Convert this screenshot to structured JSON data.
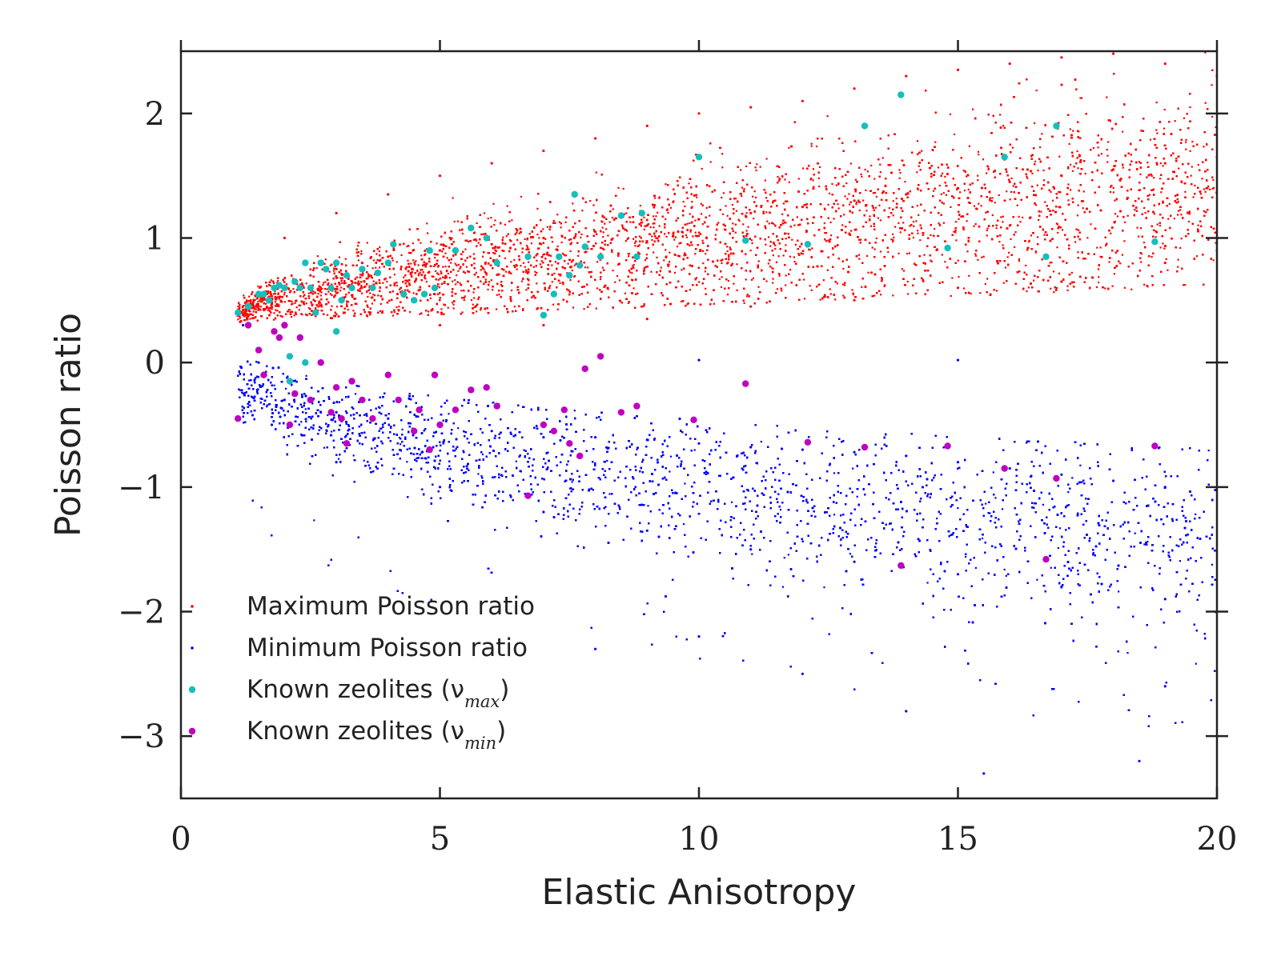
{
  "chart_data": {
    "type": "scatter",
    "title": "",
    "xlabel": "Elastic Anisotropy",
    "ylabel": "Poisson ratio",
    "xlim": [
      0,
      20
    ],
    "ylim": [
      -3.5,
      2.5
    ],
    "x_ticks": [
      {
        "value": 0,
        "label": "0"
      },
      {
        "value": 5,
        "label": "5"
      },
      {
        "value": 10,
        "label": "10"
      },
      {
        "value": 15,
        "label": "15"
      },
      {
        "value": 20,
        "label": "20"
      }
    ],
    "y_ticks": [
      {
        "value": 2,
        "label": "2"
      },
      {
        "value": 1,
        "label": "1"
      },
      {
        "value": 0,
        "label": "0"
      },
      {
        "value": -1,
        "label": "−1"
      },
      {
        "value": -2,
        "label": "−2"
      },
      {
        "value": -3,
        "label": "−3"
      }
    ],
    "grid": false,
    "legend_position": "lower-left",
    "series": [
      {
        "name": "Maximum Poisson ratio",
        "color": "#ff0000",
        "marker": "small-dot",
        "points": [
          [
            1.2,
            0.42
          ],
          [
            1.5,
            0.55
          ],
          [
            2.0,
            0.6
          ],
          [
            2.5,
            0.7
          ],
          [
            3.0,
            0.75
          ],
          [
            3.5,
            0.8
          ],
          [
            4.0,
            0.85
          ],
          [
            5.0,
            0.9
          ],
          [
            6.0,
            0.95
          ],
          [
            7.0,
            1.0
          ],
          [
            8.0,
            1.05
          ],
          [
            9.0,
            1.1
          ],
          [
            10.0,
            1.15
          ],
          [
            11.0,
            1.2
          ],
          [
            12.0,
            1.25
          ],
          [
            13.0,
            1.3
          ],
          [
            14.0,
            1.35
          ],
          [
            15.0,
            1.4
          ],
          [
            16.0,
            1.45
          ],
          [
            17.0,
            1.5
          ],
          [
            18.0,
            1.55
          ],
          [
            19.0,
            1.6
          ],
          [
            20.0,
            1.65
          ],
          [
            2.0,
            1.0
          ],
          [
            3.0,
            1.2
          ],
          [
            4.0,
            1.35
          ],
          [
            5.0,
            1.5
          ],
          [
            6.0,
            1.6
          ],
          [
            7.0,
            1.7
          ],
          [
            8.0,
            1.8
          ],
          [
            9.0,
            1.9
          ],
          [
            10.0,
            2.0
          ],
          [
            11.0,
            2.05
          ],
          [
            12.0,
            2.1
          ],
          [
            13.0,
            2.2
          ],
          [
            14.0,
            2.3
          ],
          [
            15.0,
            2.35
          ],
          [
            16.0,
            2.4
          ],
          [
            17.0,
            2.45
          ],
          [
            18.0,
            2.48
          ],
          [
            19.0,
            2.4
          ],
          [
            20.0,
            2.3
          ],
          [
            5.0,
            0.3
          ],
          [
            7.0,
            0.3
          ],
          [
            9.0,
            0.35
          ],
          [
            11.0,
            0.45
          ],
          [
            13.0,
            0.5
          ],
          [
            15.0,
            0.6
          ],
          [
            17.0,
            0.65
          ],
          [
            19.0,
            0.8
          ],
          [
            20.0,
            0.9
          ]
        ]
      },
      {
        "name": "Minimum Poisson ratio",
        "color": "#0000ff",
        "marker": "small-dot",
        "points": [
          [
            1.2,
            0.3
          ],
          [
            1.5,
            0.0
          ],
          [
            2.0,
            -0.3
          ],
          [
            3.0,
            -0.4
          ],
          [
            4.0,
            -0.45
          ],
          [
            5.0,
            -0.5
          ],
          [
            6.0,
            -0.55
          ],
          [
            7.0,
            -0.6
          ],
          [
            8.0,
            -0.6
          ],
          [
            9.0,
            -0.62
          ],
          [
            10.0,
            -0.65
          ],
          [
            11.0,
            -0.68
          ],
          [
            12.0,
            -0.7
          ],
          [
            13.0,
            -0.72
          ],
          [
            14.0,
            -0.75
          ],
          [
            15.0,
            -0.8
          ],
          [
            16.0,
            -0.85
          ],
          [
            17.0,
            -0.9
          ],
          [
            18.0,
            -0.95
          ],
          [
            19.0,
            -1.0
          ],
          [
            20.0,
            -1.0
          ],
          [
            3.0,
            -0.8
          ],
          [
            5.0,
            -1.0
          ],
          [
            7.0,
            -1.2
          ],
          [
            9.0,
            -1.35
          ],
          [
            11.0,
            -1.5
          ],
          [
            13.0,
            -1.6
          ],
          [
            15.0,
            -1.7
          ],
          [
            17.0,
            -1.8
          ],
          [
            19.0,
            -1.9
          ],
          [
            20.0,
            -2.0
          ],
          [
            10.0,
            -2.2
          ],
          [
            12.0,
            -2.5
          ],
          [
            14.0,
            -2.8
          ],
          [
            15.5,
            -3.3
          ],
          [
            18.5,
            -3.2
          ],
          [
            19.0,
            -2.6
          ],
          [
            8.0,
            -2.3
          ],
          [
            20.0,
            0.0
          ],
          [
            15.0,
            0.02
          ],
          [
            10.0,
            0.02
          ]
        ]
      },
      {
        "name": "Known zeolites (ν_max)",
        "color": "#17bebb",
        "marker": "dot",
        "points": [
          [
            1.1,
            0.4
          ],
          [
            1.3,
            0.45
          ],
          [
            1.5,
            0.55
          ],
          [
            1.6,
            0.55
          ],
          [
            1.7,
            0.5
          ],
          [
            1.8,
            0.6
          ],
          [
            1.9,
            0.62
          ],
          [
            2.0,
            0.6
          ],
          [
            2.2,
            0.65
          ],
          [
            2.3,
            0.6
          ],
          [
            2.4,
            0.8
          ],
          [
            2.5,
            0.6
          ],
          [
            2.6,
            0.4
          ],
          [
            2.7,
            0.8
          ],
          [
            2.8,
            0.75
          ],
          [
            2.9,
            0.6
          ],
          [
            3.0,
            0.8
          ],
          [
            3.1,
            0.5
          ],
          [
            3.2,
            0.7
          ],
          [
            3.3,
            0.6
          ],
          [
            3.5,
            0.75
          ],
          [
            3.7,
            0.6
          ],
          [
            3.8,
            0.72
          ],
          [
            4.0,
            0.8
          ],
          [
            4.1,
            0.95
          ],
          [
            4.3,
            0.55
          ],
          [
            4.5,
            0.5
          ],
          [
            4.7,
            0.55
          ],
          [
            4.8,
            0.9
          ],
          [
            4.9,
            0.6
          ],
          [
            5.3,
            0.9
          ],
          [
            5.6,
            1.08
          ],
          [
            5.9,
            1.0
          ],
          [
            6.1,
            0.8
          ],
          [
            6.7,
            0.85
          ],
          [
            7.0,
            0.38
          ],
          [
            7.2,
            0.55
          ],
          [
            7.3,
            0.85
          ],
          [
            7.5,
            0.7
          ],
          [
            7.6,
            1.35
          ],
          [
            7.7,
            0.78
          ],
          [
            7.8,
            0.93
          ],
          [
            8.1,
            0.85
          ],
          [
            8.5,
            1.18
          ],
          [
            8.8,
            0.85
          ],
          [
            8.9,
            1.2
          ],
          [
            10.0,
            1.65
          ],
          [
            10.9,
            0.98
          ],
          [
            12.1,
            0.95
          ],
          [
            13.2,
            1.9
          ],
          [
            13.9,
            2.15
          ],
          [
            14.8,
            0.92
          ],
          [
            15.9,
            1.65
          ],
          [
            16.7,
            0.85
          ],
          [
            16.9,
            1.9
          ],
          [
            18.8,
            0.97
          ],
          [
            2.1,
            0.05
          ],
          [
            2.1,
            -0.15
          ],
          [
            3.0,
            0.25
          ],
          [
            2.4,
            0.0
          ]
        ]
      },
      {
        "name": "Known zeolites (ν_min)",
        "color": "#c000c0",
        "marker": "dot",
        "points": [
          [
            1.1,
            -0.45
          ],
          [
            1.3,
            0.3
          ],
          [
            1.5,
            0.1
          ],
          [
            1.6,
            -0.1
          ],
          [
            1.8,
            0.25
          ],
          [
            1.9,
            0.2
          ],
          [
            2.0,
            0.3
          ],
          [
            2.1,
            -0.5
          ],
          [
            2.2,
            -0.25
          ],
          [
            2.3,
            0.2
          ],
          [
            2.5,
            -0.3
          ],
          [
            2.7,
            0.0
          ],
          [
            2.9,
            -0.4
          ],
          [
            3.0,
            -0.2
          ],
          [
            3.1,
            -0.45
          ],
          [
            3.2,
            -0.65
          ],
          [
            3.3,
            -0.15
          ],
          [
            3.5,
            -0.3
          ],
          [
            3.7,
            -0.45
          ],
          [
            4.0,
            -0.1
          ],
          [
            4.2,
            -0.3
          ],
          [
            4.5,
            -0.55
          ],
          [
            4.6,
            -0.38
          ],
          [
            4.8,
            -0.7
          ],
          [
            4.9,
            -0.1
          ],
          [
            5.0,
            -0.5
          ],
          [
            5.3,
            -0.38
          ],
          [
            5.6,
            -0.22
          ],
          [
            5.9,
            -0.2
          ],
          [
            6.1,
            -0.35
          ],
          [
            6.7,
            -1.07
          ],
          [
            7.0,
            -0.5
          ],
          [
            7.2,
            -0.55
          ],
          [
            7.4,
            -0.38
          ],
          [
            7.5,
            -0.65
          ],
          [
            7.7,
            -0.75
          ],
          [
            7.8,
            -0.05
          ],
          [
            8.1,
            0.05
          ],
          [
            8.5,
            -0.4
          ],
          [
            8.8,
            -0.35
          ],
          [
            9.9,
            -0.46
          ],
          [
            10.9,
            -0.17
          ],
          [
            12.1,
            -0.64
          ],
          [
            13.2,
            -0.68
          ],
          [
            13.9,
            -1.63
          ],
          [
            14.8,
            -0.67
          ],
          [
            15.9,
            -0.85
          ],
          [
            16.7,
            -1.58
          ],
          [
            16.9,
            -0.93
          ],
          [
            18.8,
            -0.67
          ]
        ]
      }
    ]
  },
  "legend": {
    "items": [
      {
        "label": "Maximum Poisson ratio",
        "color": "#ff0000",
        "marker": "small-dot"
      },
      {
        "label": "Minimum Poisson ratio",
        "color": "#0000ff",
        "marker": "small-dot"
      },
      {
        "label": "Known zeolites (ν",
        "sub": "max",
        "suffix": ")",
        "color": "#17bebb",
        "marker": "dot"
      },
      {
        "label": "Known zeolites (ν",
        "sub": "min",
        "suffix": ")",
        "color": "#c000c0",
        "marker": "dot"
      }
    ]
  }
}
